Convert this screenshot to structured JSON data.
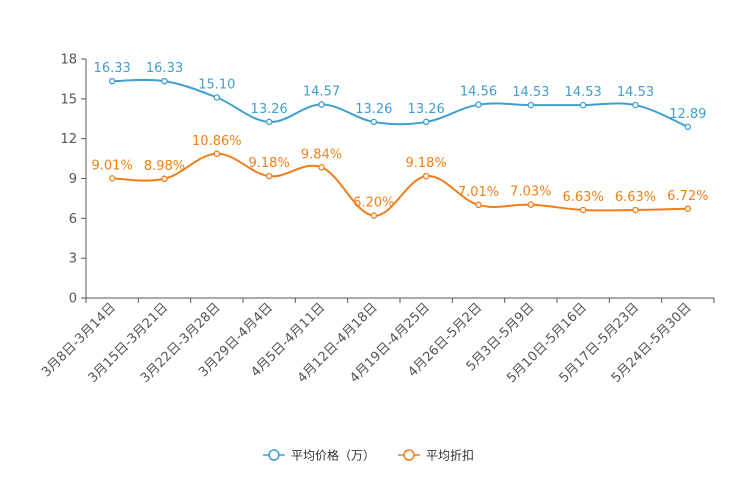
{
  "chart_data": {
    "type": "line",
    "categories": [
      "3月8日-3月14日",
      "3月15日-3月21日",
      "3月22日-3月28日",
      "3月29日-4月4日",
      "4月5日-4月11日",
      "4月12日-4月18日",
      "4月19日-4月25日",
      "4月26日-5月2日",
      "5月3日-5月9日",
      "5月10日-5月16日",
      "5月17日-5月23日",
      "5月24日-5月30日"
    ],
    "series": [
      {
        "name": "平均价格（万）",
        "color": "#3fa0ce",
        "values": [
          16.33,
          16.33,
          15.1,
          13.26,
          14.57,
          13.26,
          13.26,
          14.56,
          14.53,
          14.53,
          14.53,
          12.89
        ],
        "labels": [
          "16.33",
          "16.33",
          "15.10",
          "13.26",
          "14.57",
          "13.26",
          "13.26",
          "14.56",
          "14.53",
          "14.53",
          "14.53",
          "12.89"
        ]
      },
      {
        "name": "平均折扣",
        "color": "#f07f1a",
        "values": [
          9.01,
          8.98,
          10.86,
          9.18,
          9.84,
          6.2,
          9.18,
          7.01,
          7.03,
          6.63,
          6.63,
          6.72
        ],
        "labels": [
          "9.01%",
          "8.98%",
          "10.86%",
          "9.18%",
          "9.84%",
          "6.20%",
          "9.18%",
          "7.01%",
          "7.03%",
          "6.63%",
          "6.63%",
          "6.72%"
        ]
      }
    ],
    "yticks": [
      "0",
      "3",
      "6",
      "9",
      "12",
      "15",
      "18"
    ],
    "ylim": [
      0,
      18
    ],
    "title": "",
    "xlabel": "",
    "ylabel": "",
    "grid": false,
    "legend_position": "bottom-center"
  }
}
